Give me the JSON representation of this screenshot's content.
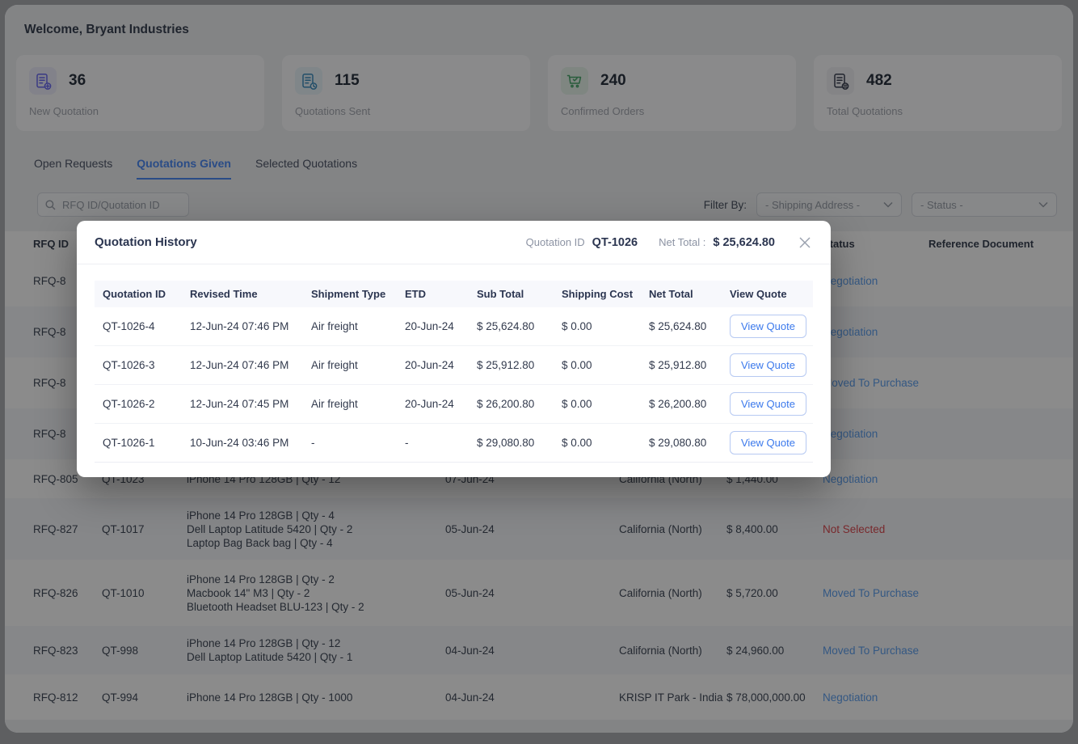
{
  "window": {
    "title": "Welcome, Bryant Industries"
  },
  "stats": [
    {
      "value": "36",
      "label": "New Quotation",
      "icon": "quotation-new-icon",
      "color": "#6a6af0",
      "bg": "#ededfb"
    },
    {
      "value": "115",
      "label": "Quotations Sent",
      "icon": "quotation-sent-icon",
      "color": "#3f8fc0",
      "bg": "#eaf4fa"
    },
    {
      "value": "240",
      "label": "Confirmed Orders",
      "icon": "cart-check-icon",
      "color": "#4aa86c",
      "bg": "#e7f5ec"
    },
    {
      "value": "482",
      "label": "Total Quotations",
      "icon": "quotation-total-icon",
      "color": "#3c4354",
      "bg": "#f0f1f4"
    }
  ],
  "tabs": [
    {
      "label": "Open Requests",
      "active": false
    },
    {
      "label": "Quotations Given",
      "active": true
    },
    {
      "label": "Selected Quotations",
      "active": false
    }
  ],
  "toolbar": {
    "search_placeholder": "RFQ ID/Quotation ID",
    "filter_label": "Filter By:",
    "shipping_filter": "- Shipping Address -",
    "status_filter": "- Status -"
  },
  "table": {
    "headers": {
      "rfq": "RFQ ID",
      "status": "Status",
      "reference": "Reference Document"
    },
    "rows": [
      {
        "rfq": "RFQ-8",
        "qid": "",
        "items": [],
        "date": "",
        "address": "",
        "amount": "",
        "status": "Negotiation",
        "status_type": "blue"
      },
      {
        "rfq": "RFQ-8",
        "qid": "",
        "items": [],
        "date": "",
        "address": "",
        "amount": "",
        "status": "Negotiation",
        "status_type": "blue"
      },
      {
        "rfq": "RFQ-8",
        "qid": "",
        "items": [],
        "date": "",
        "address": "",
        "amount": "",
        "status": "Moved To Purchase",
        "status_type": "blue"
      },
      {
        "rfq": "RFQ-8",
        "qid": "",
        "items": [],
        "date": "",
        "address": "",
        "amount": "",
        "status": "Negotiation",
        "status_type": "blue"
      },
      {
        "rfq": "RFQ-805",
        "qid": "QT-1023",
        "items": [
          "iPhone 14 Pro 128GB | Qty - 12"
        ],
        "date": "07-Jun-24",
        "address": "California (North)",
        "amount": "$ 1,440.00",
        "status": "Negotiation",
        "status_type": "blue"
      },
      {
        "rfq": "RFQ-827",
        "qid": "QT-1017",
        "items": [
          "iPhone 14 Pro 128GB | Qty - 4",
          "Dell Laptop Latitude 5420 | Qty - 2",
          "Laptop Bag Back bag | Qty - 4"
        ],
        "date": "05-Jun-24",
        "address": "California (North)",
        "amount": "$ 8,400.00",
        "status": "Not Selected",
        "status_type": "red"
      },
      {
        "rfq": "RFQ-826",
        "qid": "QT-1010",
        "items": [
          "iPhone 14 Pro 128GB | Qty - 2",
          "Macbook 14\" M3 | Qty - 2",
          "Bluetooth Headset BLU-123 | Qty - 2"
        ],
        "date": "05-Jun-24",
        "address": "California (North)",
        "amount": "$ 5,720.00",
        "status": "Moved To Purchase",
        "status_type": "blue"
      },
      {
        "rfq": "RFQ-823",
        "qid": "QT-998",
        "items": [
          "iPhone 14 Pro 128GB | Qty - 12",
          "Dell Laptop Latitude 5420 | Qty - 1"
        ],
        "date": "04-Jun-24",
        "address": "California (North)",
        "amount": "$ 24,960.00",
        "status": "Moved To Purchase",
        "status_type": "blue"
      },
      {
        "rfq": "RFQ-812",
        "qid": "QT-994",
        "items": [
          "iPhone 14 Pro 128GB | Qty - 1000"
        ],
        "date": "04-Jun-24",
        "address": "KRISP IT Park - India",
        "amount": "$ 78,000,000.00",
        "status": "Negotiation",
        "status_type": "blue"
      }
    ]
  },
  "modal": {
    "title": "Quotation History",
    "quotation_id_label": "Quotation ID",
    "quotation_id": "QT-1026",
    "net_total_label": "Net Total :",
    "net_total": "$ 25,624.80",
    "table": {
      "headers": [
        "Quotation ID",
        "Revised Time",
        "Shipment Type",
        "ETD",
        "Sub Total",
        "Shipping Cost",
        "Net Total",
        "View Quote"
      ],
      "action_label": "View Quote",
      "rows": [
        {
          "id": "QT-1026-4",
          "revised": "12-Jun-24 07:46 PM",
          "shipment": "Air freight",
          "etd": "20-Jun-24",
          "sub": "$ 25,624.80",
          "shipping": "$ 0.00",
          "net": "$ 25,624.80"
        },
        {
          "id": "QT-1026-3",
          "revised": "12-Jun-24 07:46 PM",
          "shipment": "Air freight",
          "etd": "20-Jun-24",
          "sub": "$ 25,912.80",
          "shipping": "$ 0.00",
          "net": "$ 25,912.80"
        },
        {
          "id": "QT-1026-2",
          "revised": "12-Jun-24 07:45 PM",
          "shipment": "Air freight",
          "etd": "20-Jun-24",
          "sub": "$ 26,200.80",
          "shipping": "$ 0.00",
          "net": "$ 26,200.80"
        },
        {
          "id": "QT-1026-1",
          "revised": "10-Jun-24 03:46 PM",
          "shipment": "-",
          "etd": "-",
          "sub": "$ 29,080.80",
          "shipping": "$ 0.00",
          "net": "$ 29,080.80"
        }
      ]
    }
  },
  "colors": {
    "accent_blue": "#4e8af4",
    "status_blue": "#5fa0ee",
    "status_red": "#db4b52"
  }
}
